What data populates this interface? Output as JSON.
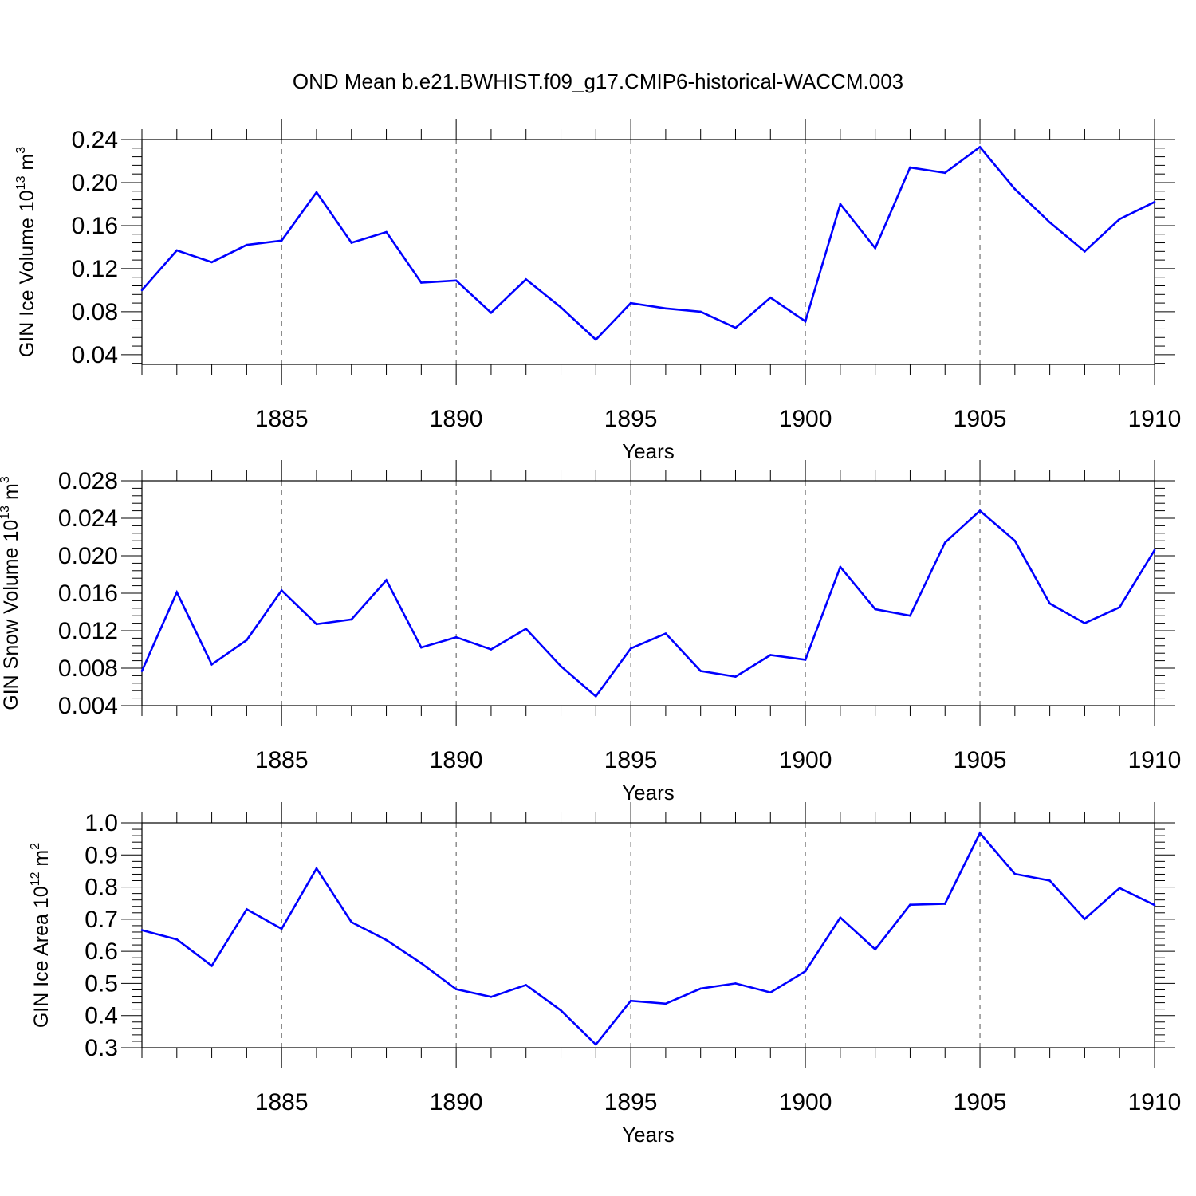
{
  "figure_title": "OND Mean b.e21.BWHIST.f09_g17.CMIP6-historical-WACCM.003",
  "colors": {
    "series": "#0000ff",
    "axis": "#000000",
    "grid": "#555555"
  },
  "chart_data": [
    {
      "type": "line",
      "title": "",
      "xlabel": "Years",
      "ylabel": "GIN Ice Volume 10",
      "ylabel_sup_exp": "13",
      "ylabel_unit": " m",
      "ylabel_sup_unit": "3",
      "xlim": [
        1881,
        1910
      ],
      "ylim": [
        0.031,
        0.24
      ],
      "xticks": [
        1885,
        1890,
        1895,
        1900,
        1905,
        1910
      ],
      "yticks": [
        0.04,
        0.08,
        0.12,
        0.16,
        0.2,
        0.24
      ],
      "yticklabels": [
        "0.04",
        "0.08",
        "0.12",
        "0.16",
        "0.20",
        "0.24"
      ],
      "grid": "vertical dashed at major x ticks",
      "series": [
        {
          "x": [
            1881,
            1882,
            1883,
            1884,
            1885,
            1886,
            1887,
            1888,
            1889,
            1890,
            1891,
            1892,
            1893,
            1894,
            1895,
            1896,
            1897,
            1898,
            1899,
            1900,
            1901,
            1902,
            1903,
            1904,
            1905,
            1906,
            1907,
            1908,
            1909,
            1910
          ],
          "values": [
            0.1,
            0.137,
            0.126,
            0.142,
            0.146,
            0.191,
            0.144,
            0.154,
            0.107,
            0.109,
            0.079,
            0.11,
            0.084,
            0.054,
            0.088,
            0.083,
            0.08,
            0.065,
            0.093,
            0.071,
            0.18,
            0.139,
            0.214,
            0.209,
            0.233,
            0.194,
            0.163,
            0.136,
            0.166,
            0.182
          ]
        }
      ]
    },
    {
      "type": "line",
      "title": "",
      "xlabel": "Years",
      "ylabel": "GIN Snow Volume 10",
      "ylabel_sup_exp": "13",
      "ylabel_unit": " m",
      "ylabel_sup_unit": "3",
      "xlim": [
        1881,
        1910
      ],
      "ylim": [
        0.004,
        0.028
      ],
      "xticks": [
        1885,
        1890,
        1895,
        1900,
        1905,
        1910
      ],
      "yticks": [
        0.004,
        0.008,
        0.012,
        0.016,
        0.02,
        0.024,
        0.028
      ],
      "yticklabels": [
        "0.004",
        "0.008",
        "0.012",
        "0.016",
        "0.020",
        "0.024",
        "0.028"
      ],
      "grid": "vertical dashed at major x ticks",
      "series": [
        {
          "x": [
            1881,
            1882,
            1883,
            1884,
            1885,
            1886,
            1887,
            1888,
            1889,
            1890,
            1891,
            1892,
            1893,
            1894,
            1895,
            1896,
            1897,
            1898,
            1899,
            1900,
            1901,
            1902,
            1903,
            1904,
            1905,
            1906,
            1907,
            1908,
            1909,
            1910
          ],
          "values": [
            0.0077,
            0.0161,
            0.0084,
            0.011,
            0.0163,
            0.0127,
            0.0132,
            0.0174,
            0.0102,
            0.0113,
            0.01,
            0.0122,
            0.0082,
            0.005,
            0.0101,
            0.0117,
            0.0077,
            0.0071,
            0.0094,
            0.0089,
            0.0188,
            0.0143,
            0.0136,
            0.0214,
            0.0248,
            0.0216,
            0.0149,
            0.0128,
            0.0145,
            0.0206
          ]
        }
      ]
    },
    {
      "type": "line",
      "title": "",
      "xlabel": "Years",
      "ylabel": "GIN Ice Area 10",
      "ylabel_sup_exp": "12",
      "ylabel_unit": " m",
      "ylabel_sup_unit": "2",
      "xlim": [
        1881,
        1910
      ],
      "ylim": [
        0.3,
        1.0
      ],
      "xticks": [
        1885,
        1890,
        1895,
        1900,
        1905,
        1910
      ],
      "yticks": [
        0.3,
        0.4,
        0.5,
        0.6,
        0.7,
        0.8,
        0.9,
        1.0
      ],
      "yticklabels": [
        "0.3",
        "0.4",
        "0.5",
        "0.6",
        "0.7",
        "0.8",
        "0.9",
        "1.0"
      ],
      "grid": "vertical dashed at major x ticks",
      "series": [
        {
          "x": [
            1881,
            1882,
            1883,
            1884,
            1885,
            1886,
            1887,
            1888,
            1889,
            1890,
            1891,
            1892,
            1893,
            1894,
            1895,
            1896,
            1897,
            1898,
            1899,
            1900,
            1901,
            1902,
            1903,
            1904,
            1905,
            1906,
            1907,
            1908,
            1909,
            1910
          ],
          "values": [
            0.666,
            0.637,
            0.555,
            0.731,
            0.67,
            0.858,
            0.691,
            0.635,
            0.563,
            0.482,
            0.458,
            0.495,
            0.416,
            0.31,
            0.446,
            0.437,
            0.484,
            0.5,
            0.472,
            0.538,
            0.705,
            0.606,
            0.745,
            0.748,
            0.968,
            0.841,
            0.82,
            0.701,
            0.797,
            0.744
          ]
        }
      ]
    }
  ]
}
